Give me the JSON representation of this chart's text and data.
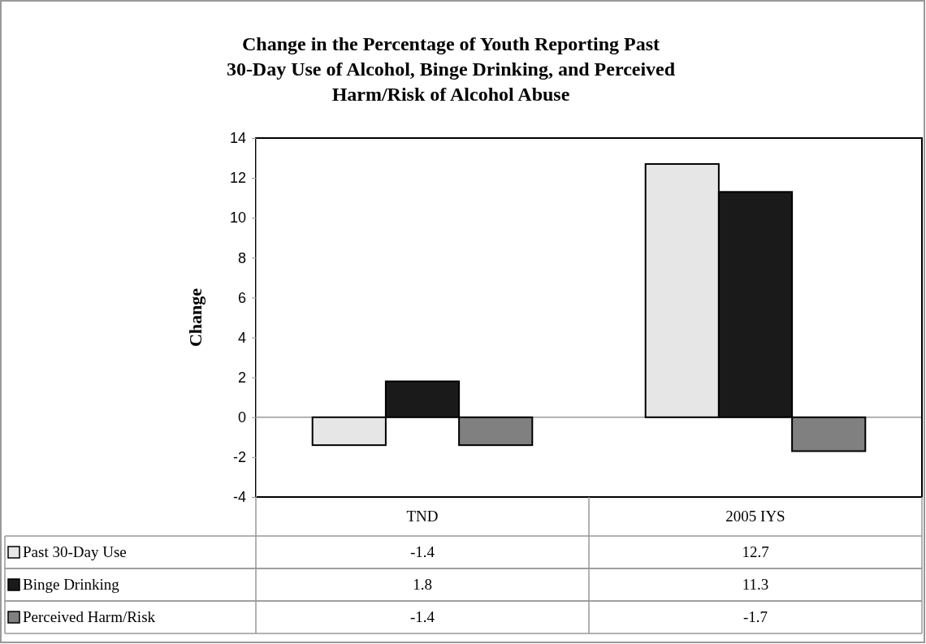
{
  "chart_data": {
    "type": "bar",
    "title": "Change in the Percentage of Youth Reporting Past 30-Day Use of Alcohol, Binge Drinking, and Perceived Harm/Risk of Alcohol Abuse",
    "ylabel": "Change",
    "categories": [
      "TND",
      "2005 IYS"
    ],
    "series": [
      {
        "name": "Past 30-Day Use",
        "color": "#e6e6e6",
        "values": [
          -1.4,
          12.7
        ]
      },
      {
        "name": "Binge Drinking",
        "color": "#1a1a1a",
        "values": [
          1.8,
          11.3
        ]
      },
      {
        "name": "Perceived Harm/Risk",
        "color": "#808080",
        "values": [
          -1.4,
          -1.7
        ]
      }
    ],
    "ylim": [
      -4,
      14
    ],
    "yticks": [
      -4,
      -2,
      0,
      2,
      4,
      6,
      8,
      10,
      12,
      14
    ],
    "legend": "bottom",
    "data_labels": true
  }
}
